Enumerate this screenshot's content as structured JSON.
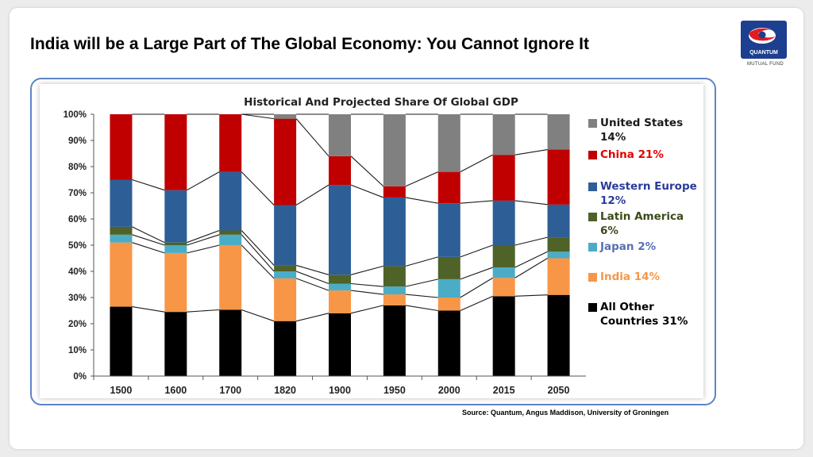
{
  "slide": {
    "title": "India will be a Large Part of The Global Economy: You Cannot Ignore It",
    "source": "Source: Quantum, Angus Maddison, University of Groningen"
  },
  "logo": {
    "name": "QUANTUM",
    "subtitle": "MUTUAL FUND",
    "colors": {
      "box": "#1c3f8f",
      "swirl_red": "#e21b23",
      "swirl_white": "#ffffff"
    }
  },
  "legend": {
    "items": [
      {
        "key": "us",
        "label": "United States",
        "sub": "14%",
        "color": "#808080",
        "text_color": "#1a1a1a"
      },
      {
        "key": "china",
        "label": "China 21%",
        "sub": "",
        "color": "#c00000",
        "text_color": "#e00000"
      },
      {
        "key": "we",
        "label": "Western Europe",
        "sub": "12%",
        "color": "#2e5e96",
        "text_color": "#2a3b9a"
      },
      {
        "key": "la",
        "label": "Latin America",
        "sub": "6%",
        "color": "#4f6228",
        "text_color": "#3b4a1a"
      },
      {
        "key": "japan",
        "label": "Japan 2%",
        "sub": "",
        "color": "#4bacc6",
        "text_color": "#5a6fb3"
      },
      {
        "key": "india",
        "label": "India 14%",
        "sub": "",
        "color": "#f79646",
        "text_color": "#f79646"
      },
      {
        "key": "other",
        "label": "All Other",
        "sub": "Countries 31%",
        "color": "#000000",
        "text_color": "#000000"
      }
    ]
  },
  "chart_data": {
    "type": "bar",
    "stacked": true,
    "title": "Historical And Projected Share Of Global GDP",
    "categories": [
      "1500",
      "1600",
      "1700",
      "1820",
      "1900",
      "1950",
      "2000",
      "2015",
      "2050"
    ],
    "y_ticks": [
      "0%",
      "10%",
      "20%",
      "30%",
      "40%",
      "50%",
      "60%",
      "70%",
      "80%",
      "90%",
      "100%"
    ],
    "ylim": [
      0,
      100
    ],
    "connector_lines": true,
    "series": [
      {
        "name": "All Other Countries",
        "color": "#000000",
        "values": [
          26.5,
          24.5,
          25.3,
          21,
          24,
          27,
          25,
          30.5,
          31
        ]
      },
      {
        "name": "India",
        "color": "#f79646",
        "values": [
          24.5,
          22.5,
          24.7,
          16.3,
          8.7,
          4.2,
          5,
          7,
          14
        ]
      },
      {
        "name": "Japan",
        "color": "#4bacc6",
        "values": [
          3,
          3,
          4,
          2.7,
          2.6,
          3,
          7,
          4,
          2.5
        ]
      },
      {
        "name": "Latin America",
        "color": "#4f6228",
        "values": [
          3,
          1,
          1.6,
          2.3,
          3.4,
          7.8,
          8.5,
          8.5,
          5.5
        ]
      },
      {
        "name": "Western Europe",
        "color": "#2e5e96",
        "values": [
          18,
          20,
          22.4,
          23,
          34.3,
          26.2,
          20.5,
          17,
          12.5
        ]
      },
      {
        "name": "China",
        "color": "#c00000",
        "values": [
          25,
          29,
          22,
          33,
          11,
          4.3,
          12,
          17.5,
          21
        ]
      },
      {
        "name": "United States",
        "color": "#808080",
        "values": [
          0,
          0,
          0,
          1.7,
          16,
          27.5,
          22,
          15.5,
          13.5
        ]
      }
    ]
  }
}
